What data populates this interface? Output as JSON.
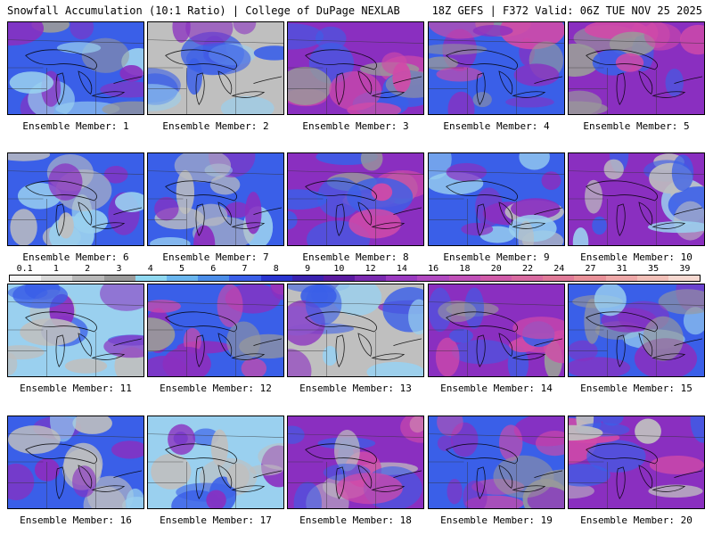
{
  "header": {
    "left": "Snowfall Accumulation (10:1 Ratio) | College of DuPage NEXLAB",
    "right": "18Z GEFS | F372 Valid: 06Z TUE NOV 25 2025"
  },
  "members": [
    {
      "label": "Ensemble Member: 1",
      "bg": "#3a5fe8",
      "c1": "#8a2fc0",
      "c2": "#9ad0ef",
      "c3": "#9a9a9a"
    },
    {
      "label": "Ensemble Member: 2",
      "bg": "#bfbfbf",
      "c1": "#3a5fe8",
      "c2": "#8a2fc0",
      "c3": "#9ad0ef"
    },
    {
      "label": "Ensemble Member: 3",
      "bg": "#8a2fc0",
      "c1": "#d04aa8",
      "c2": "#3a5fe8",
      "c3": "#9a9a9a"
    },
    {
      "label": "Ensemble Member: 4",
      "bg": "#3a5fe8",
      "c1": "#8a2fc0",
      "c2": "#9a9a9a",
      "c3": "#d04aa8"
    },
    {
      "label": "Ensemble Member: 5",
      "bg": "#8a2fc0",
      "c1": "#d04aa8",
      "c2": "#9a9a9a",
      "c3": "#3a5fe8"
    },
    {
      "label": "Ensemble Member: 6",
      "bg": "#3a5fe8",
      "c1": "#bfbfbf",
      "c2": "#9ad0ef",
      "c3": "#8a2fc0"
    },
    {
      "label": "Ensemble Member: 7",
      "bg": "#3a5fe8",
      "c1": "#bfbfbf",
      "c2": "#8a2fc0",
      "c3": "#9ad0ef"
    },
    {
      "label": "Ensemble Member: 8",
      "bg": "#8a2fc0",
      "c1": "#3a5fe8",
      "c2": "#d04aa8",
      "c3": "#9a9a9a"
    },
    {
      "label": "Ensemble Member: 9",
      "bg": "#3a5fe8",
      "c1": "#8a2fc0",
      "c2": "#9ad0ef",
      "c3": "#bfbfbf"
    },
    {
      "label": "Ensemble Member: 10",
      "bg": "#8a2fc0",
      "c1": "#bfbfbf",
      "c2": "#3a5fe8",
      "c3": "#9ad0ef"
    },
    {
      "label": "Ensemble Member: 11",
      "bg": "#9ad0ef",
      "c1": "#bfbfbf",
      "c2": "#3a5fe8",
      "c3": "#8a2fc0"
    },
    {
      "label": "Ensemble Member: 12",
      "bg": "#3a5fe8",
      "c1": "#8a2fc0",
      "c2": "#d04aa8",
      "c3": "#9a9a9a"
    },
    {
      "label": "Ensemble Member: 13",
      "bg": "#bfbfbf",
      "c1": "#3a5fe8",
      "c2": "#9ad0ef",
      "c3": "#8a2fc0"
    },
    {
      "label": "Ensemble Member: 14",
      "bg": "#8a2fc0",
      "c1": "#3a5fe8",
      "c2": "#d04aa8",
      "c3": "#9a9a9a"
    },
    {
      "label": "Ensemble Member: 15",
      "bg": "#3a5fe8",
      "c1": "#8a2fc0",
      "c2": "#9a9a9a",
      "c3": "#9ad0ef"
    },
    {
      "label": "Ensemble Member: 16",
      "bg": "#3a5fe8",
      "c1": "#bfbfbf",
      "c2": "#8a2fc0",
      "c3": "#9ad0ef"
    },
    {
      "label": "Ensemble Member: 17",
      "bg": "#9ad0ef",
      "c1": "#bfbfbf",
      "c2": "#3a5fe8",
      "c3": "#8a2fc0"
    },
    {
      "label": "Ensemble Member: 18",
      "bg": "#8a2fc0",
      "c1": "#3a5fe8",
      "c2": "#bfbfbf",
      "c3": "#d04aa8"
    },
    {
      "label": "Ensemble Member: 19",
      "bg": "#3a5fe8",
      "c1": "#8a2fc0",
      "c2": "#d04aa8",
      "c3": "#9a9a9a"
    },
    {
      "label": "Ensemble Member: 20",
      "bg": "#8a2fc0",
      "c1": "#3a5fe8",
      "c2": "#bfbfbf",
      "c3": "#d04aa8"
    }
  ],
  "colorbar": {
    "labels": [
      "0.1",
      "1",
      "2",
      "3",
      "4",
      "5",
      "6",
      "7",
      "8",
      "9",
      "10",
      "12",
      "14",
      "16",
      "18",
      "20",
      "22",
      "24",
      "27",
      "31",
      "35",
      "39"
    ],
    "colors": [
      "#f4f4f4",
      "#d8d8d8",
      "#b8b8b8",
      "#9a9a9a",
      "#8fd8f0",
      "#6ab6ee",
      "#4b8de8",
      "#3a5fe8",
      "#2a35d0",
      "#3a22b0",
      "#5a1aa0",
      "#7a2ab0",
      "#9a3ac0",
      "#b048c0",
      "#c050b8",
      "#d05aa8",
      "#d86aa0",
      "#e07a98",
      "#e89098",
      "#eea8a8",
      "#f2c0b8",
      "#f6d8d0"
    ]
  }
}
